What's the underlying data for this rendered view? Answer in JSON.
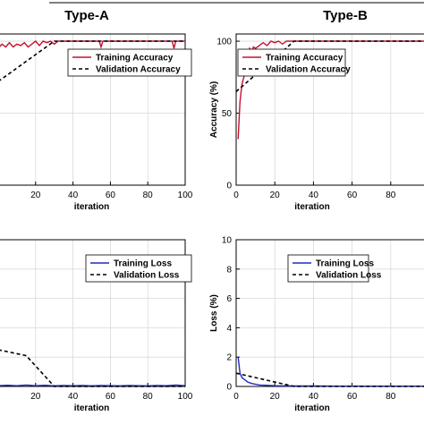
{
  "panel_titles": [
    "Type-A",
    "Type-B"
  ],
  "colors": {
    "training_accuracy": "#c8102e",
    "validation": "#000000",
    "training_loss": "#1f2bbf",
    "grid": "#d9d9d9"
  },
  "chart_data": [
    {
      "id": "type-a-accuracy",
      "type": "line",
      "title": "Type-A",
      "xlabel": "iteration",
      "ylabel": "",
      "xlim": [
        0,
        100
      ],
      "ylim": [
        0,
        105
      ],
      "xticks": [
        20,
        40,
        60,
        80,
        100
      ],
      "yticks": [],
      "grid": true,
      "legend": "top-right",
      "series": [
        {
          "name": "Training Accuracy",
          "color": "#c8102e",
          "dash": "solid",
          "x": [
            0,
            2,
            4,
            6,
            8,
            10,
            12,
            14,
            16,
            18,
            20,
            22,
            24,
            26,
            28,
            30,
            32,
            34,
            36,
            38,
            40,
            45,
            50,
            54,
            55,
            56,
            60,
            65,
            70,
            75,
            80,
            85,
            90,
            93,
            94,
            95,
            100
          ],
          "y": [
            95,
            98,
            96,
            99,
            96,
            98,
            97,
            99,
            96,
            98,
            100,
            97,
            100,
            99,
            100,
            98,
            100,
            100,
            100,
            100,
            100,
            100,
            100,
            100,
            96,
            100,
            100,
            100,
            100,
            100,
            100,
            100,
            100,
            100,
            95,
            100,
            100
          ]
        },
        {
          "name": "Validation Accuracy",
          "color": "#000000",
          "dash": "dashed",
          "x": [
            0,
            30,
            100
          ],
          "y": [
            72,
            100,
            100
          ]
        }
      ]
    },
    {
      "id": "type-b-accuracy",
      "type": "line",
      "title": "Type-B",
      "xlabel": "iteration",
      "ylabel": "Accuracy (%)",
      "xlim": [
        0,
        100
      ],
      "ylim": [
        0,
        105
      ],
      "xticks": [
        0,
        20,
        40,
        60,
        80
      ],
      "yticks": [
        0,
        50,
        100
      ],
      "grid": true,
      "legend": "top-right",
      "series": [
        {
          "name": "Training Accuracy",
          "color": "#c8102e",
          "dash": "solid",
          "x": [
            1,
            2,
            3,
            4,
            5,
            6,
            7,
            8,
            9,
            10,
            12,
            14,
            16,
            18,
            20,
            22,
            24,
            26,
            28,
            30,
            40,
            50,
            60,
            70,
            80,
            90,
            100
          ],
          "y": [
            32,
            58,
            70,
            75,
            82,
            88,
            95,
            93,
            96,
            95,
            97,
            99,
            97,
            100,
            99,
            100,
            98,
            100,
            100,
            100,
            100,
            100,
            100,
            100,
            100,
            100,
            100
          ]
        },
        {
          "name": "Validation Accuracy",
          "color": "#000000",
          "dash": "dashed",
          "x": [
            0,
            30,
            100
          ],
          "y": [
            65,
            100,
            100
          ]
        }
      ]
    },
    {
      "id": "type-a-loss",
      "type": "line",
      "title": "",
      "xlabel": "iteration",
      "ylabel": "",
      "xlim": [
        0,
        100
      ],
      "ylim": [
        0,
        10
      ],
      "xticks": [
        20,
        40,
        60,
        80,
        100
      ],
      "yticks": [],
      "grid": true,
      "legend": "top-right",
      "series": [
        {
          "name": "Training Loss",
          "color": "#1f2bbf",
          "dash": "solid",
          "x": [
            0,
            5,
            10,
            15,
            20,
            25,
            30,
            35,
            40,
            45,
            50,
            55,
            60,
            65,
            70,
            75,
            80,
            85,
            90,
            95,
            100
          ],
          "y": [
            0.05,
            0.08,
            0.05,
            0.1,
            0.05,
            0.08,
            0.04,
            0.06,
            0.05,
            0.07,
            0.04,
            0.06,
            0.05,
            0.04,
            0.06,
            0.05,
            0.04,
            0.06,
            0.05,
            0.1,
            0.05
          ]
        },
        {
          "name": "Validation Loss",
          "color": "#000000",
          "dash": "dashed",
          "x": [
            0,
            15,
            30,
            100
          ],
          "y": [
            2.5,
            2.1,
            0,
            0
          ]
        }
      ]
    },
    {
      "id": "type-b-loss",
      "type": "line",
      "title": "",
      "xlabel": "iteration",
      "ylabel": "Loss (%)",
      "xlim": [
        0,
        100
      ],
      "ylim": [
        0,
        10
      ],
      "xticks": [
        0,
        20,
        40,
        60,
        80
      ],
      "yticks": [
        0,
        2,
        4,
        6,
        8,
        10
      ],
      "grid": true,
      "legend": "top-right",
      "series": [
        {
          "name": "Training Loss",
          "color": "#1f2bbf",
          "dash": "solid",
          "x": [
            1,
            2,
            3,
            4,
            5,
            6,
            8,
            10,
            12,
            15,
            20,
            30,
            40,
            60,
            80,
            100
          ],
          "y": [
            2.0,
            0.9,
            0.6,
            0.5,
            0.4,
            0.3,
            0.2,
            0.15,
            0.1,
            0.08,
            0.05,
            0.03,
            0.03,
            0.02,
            0.02,
            0.02
          ]
        },
        {
          "name": "Validation Loss",
          "color": "#000000",
          "dash": "dashed",
          "x": [
            0,
            30,
            100
          ],
          "y": [
            0.9,
            0,
            0
          ]
        }
      ]
    }
  ]
}
